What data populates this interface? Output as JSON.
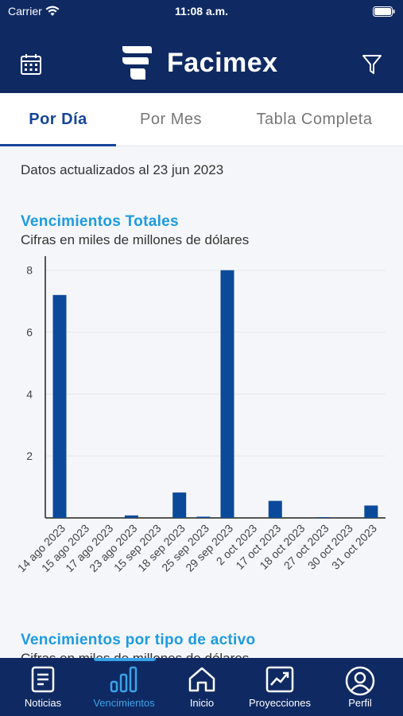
{
  "status_bar": {
    "carrier": "Carrier",
    "time": "11:08 a.m."
  },
  "header": {
    "brand": "Facimex"
  },
  "tabs": [
    {
      "label": "Por Día",
      "active": true
    },
    {
      "label": "Por Mes",
      "active": false
    },
    {
      "label": "Tabla Completa",
      "active": false
    }
  ],
  "updated_text": "Datos actualizados al 23 jun 2023",
  "sections": [
    {
      "title": "Vencimientos Totales",
      "subtitle": "Cifras en miles de millones de dólares"
    },
    {
      "title": "Vencimientos por tipo de activo",
      "subtitle": "Cifras en miles de millones de dólares"
    }
  ],
  "chart_data": {
    "type": "bar",
    "categories": [
      "14 ago 2023",
      "15 ago 2023",
      "17 ago 2023",
      "23 ago 2023",
      "15 sep 2023",
      "18 sep 2023",
      "25 sep 2023",
      "29 sep 2023",
      "2 oct 2023",
      "17 oct 2023",
      "18 oct 2023",
      "27 oct 2023",
      "30 oct 2023",
      "31 oct 2023"
    ],
    "values": [
      7.2,
      0.0,
      0.0,
      0.08,
      0.0,
      0.82,
      0.04,
      8.0,
      0.0,
      0.55,
      0.0,
      0.02,
      0.0,
      0.4
    ],
    "y_ticks": [
      2,
      4,
      6,
      8
    ],
    "ylim": [
      0,
      8.3
    ],
    "grid": true,
    "bar_color": "#0b4a9a"
  },
  "bottom_nav": [
    {
      "label": "Noticias",
      "icon": "news-icon",
      "active": false
    },
    {
      "label": "Vencimientos",
      "icon": "bar-chart-icon",
      "active": true
    },
    {
      "label": "Inicio",
      "icon": "home-icon",
      "active": false
    },
    {
      "label": "Proyecciones",
      "icon": "trend-chart-icon",
      "active": false
    },
    {
      "label": "Perfil",
      "icon": "user-icon",
      "active": false
    }
  ],
  "colors": {
    "header_bg": "#0f2a63",
    "accent": "#15459a",
    "section_title": "#1d9be0",
    "nav_active": "#3ba3e8"
  }
}
